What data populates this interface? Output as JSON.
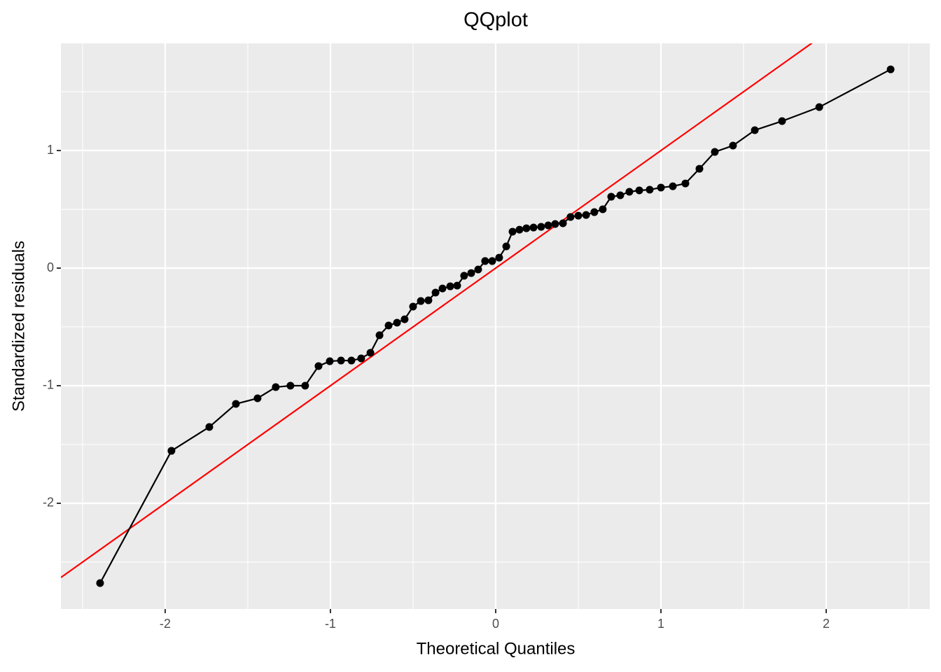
{
  "chart_data": {
    "type": "line",
    "title": "QQplot",
    "x_label": "Theoretical Quantiles",
    "y_label": "Standardized residuals",
    "x": [
      -2.394,
      -1.962,
      -1.733,
      -1.572,
      -1.441,
      -1.331,
      -1.242,
      -1.153,
      -1.072,
      -1.004,
      -0.936,
      -0.873,
      -0.814,
      -0.758,
      -0.703,
      -0.648,
      -0.597,
      -0.551,
      -0.5,
      -0.453,
      -0.407,
      -0.364,
      -0.322,
      -0.275,
      -0.233,
      -0.191,
      -0.148,
      -0.106,
      -0.064,
      -0.021,
      0.021,
      0.064,
      0.102,
      0.144,
      0.186,
      0.229,
      0.275,
      0.318,
      0.36,
      0.407,
      0.453,
      0.5,
      0.547,
      0.597,
      0.648,
      0.699,
      0.754,
      0.809,
      0.869,
      0.932,
      1.0,
      1.072,
      1.148,
      1.233,
      1.326,
      1.436,
      1.568,
      1.733,
      1.958,
      2.39
    ],
    "values": [
      -2.679,
      -1.554,
      -1.351,
      -1.155,
      -1.107,
      -1.012,
      -1.0,
      -1.0,
      -0.833,
      -0.792,
      -0.786,
      -0.786,
      -0.768,
      -0.72,
      -0.571,
      -0.488,
      -0.464,
      -0.435,
      -0.327,
      -0.28,
      -0.274,
      -0.208,
      -0.173,
      -0.155,
      -0.149,
      -0.065,
      -0.042,
      -0.012,
      0.06,
      0.06,
      0.089,
      0.185,
      0.31,
      0.327,
      0.339,
      0.345,
      0.351,
      0.363,
      0.375,
      0.381,
      0.435,
      0.446,
      0.452,
      0.476,
      0.5,
      0.607,
      0.619,
      0.649,
      0.661,
      0.667,
      0.685,
      0.696,
      0.72,
      0.845,
      0.988,
      1.042,
      1.173,
      1.25,
      1.369,
      1.69
    ],
    "color": "#000000",
    "abline": {
      "slope": 1,
      "intercept": 0,
      "color": "#ff0000"
    },
    "xlim": [
      -2.631,
      2.627
    ],
    "ylim": [
      -2.899,
      1.911
    ],
    "xticks": [
      -2,
      -1,
      0,
      1,
      2
    ],
    "yticks": [
      -2,
      -1,
      0,
      1
    ],
    "minor_xticks": [
      -2.5,
      -1.5,
      -0.5,
      0.5,
      1.5,
      2.5
    ],
    "minor_yticks": [
      -2.5,
      -1.5,
      -0.5,
      0.5,
      1.5
    ],
    "grid": true
  }
}
